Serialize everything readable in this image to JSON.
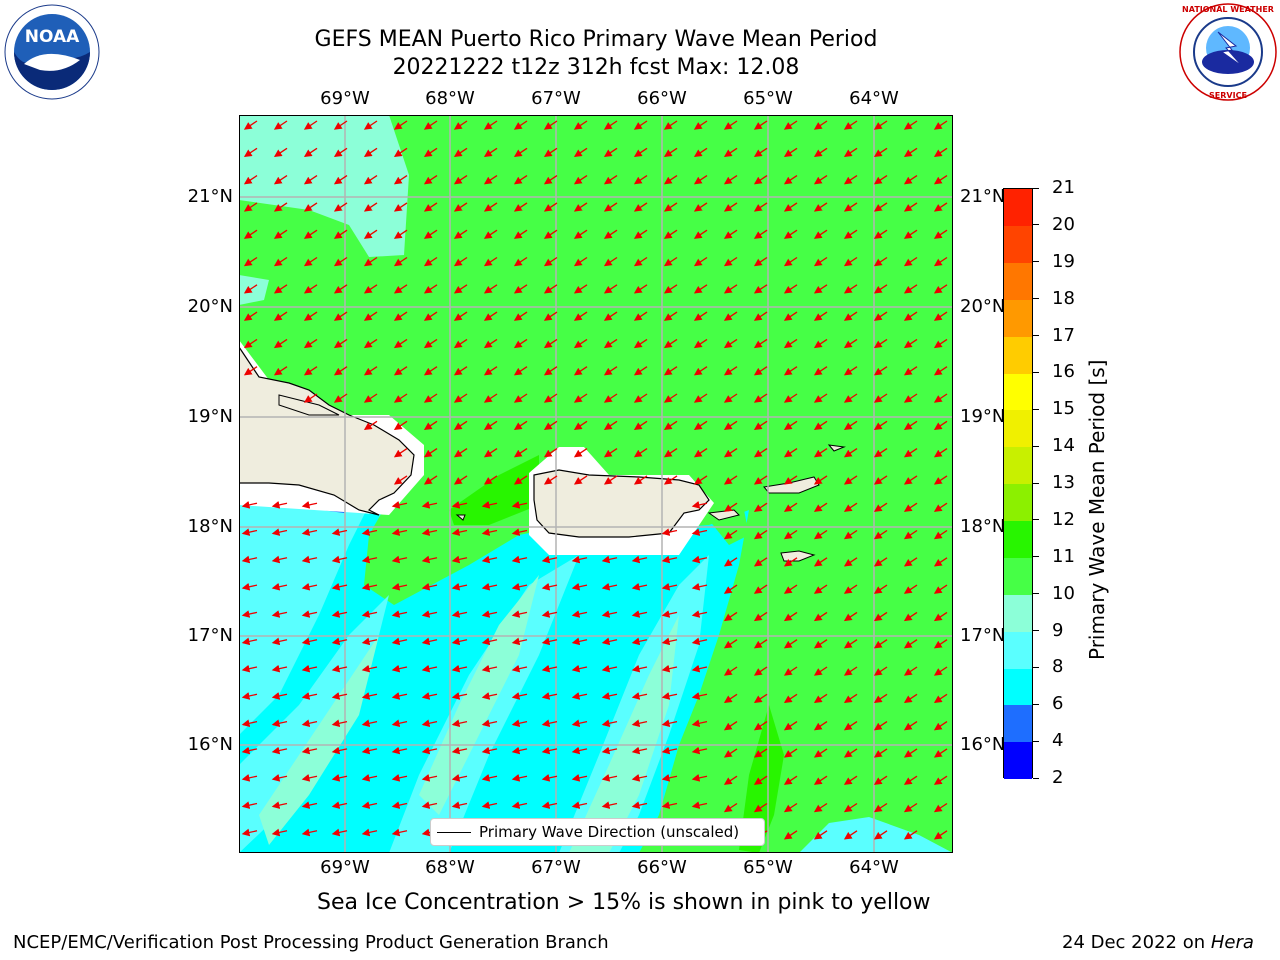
{
  "title": {
    "line1": "GEFS MEAN Puerto Rico Primary Wave Mean Period",
    "line2": "20221222 t12z 312h fcst   Max: 12.08"
  },
  "logos": {
    "left": {
      "text": "NOAA",
      "icon": "noaa-logo-icon"
    },
    "right": {
      "text": "NATIONAL WEATHER SERVICE",
      "icon": "nws-logo-icon"
    }
  },
  "lon_labels": [
    "69°W",
    "68°W",
    "67°W",
    "66°W",
    "65°W",
    "64°W"
  ],
  "lat_labels": [
    "21°N",
    "20°N",
    "19°N",
    "18°N",
    "17°N",
    "16°N"
  ],
  "colorbar": {
    "title": "Primary Wave Mean Period [s]",
    "ticks": [
      "2",
      "4",
      "6",
      "8",
      "9",
      "10",
      "11",
      "12",
      "13",
      "14",
      "15",
      "16",
      "17",
      "18",
      "19",
      "20",
      "21"
    ],
    "colors": [
      "#0000ff",
      "#1e6eff",
      "#00ffff",
      "#5affff",
      "#8cffd8",
      "#46ff46",
      "#28f500",
      "#8cf000",
      "#c8f000",
      "#f0f000",
      "#ffff00",
      "#ffcc00",
      "#ff9900",
      "#ff7700",
      "#ff4400",
      "#ff2200"
    ]
  },
  "legend": {
    "label": "Primary Wave Direction (unscaled)"
  },
  "subtitle": "Sea Ice Concentration > 15% is shown in pink to yellow",
  "footer": {
    "left": "NCEP/EMC/Verification Post Processing Product Generation Branch",
    "right_date": "24 Dec 2022 on ",
    "right_machine": "Hera"
  },
  "colors": {
    "green": "#46ff46",
    "cyan": "#00ffff",
    "light_cyan": "#5affff",
    "mint": "#8cffd8",
    "land": "#efedde",
    "arrow": "#ee0000"
  }
}
